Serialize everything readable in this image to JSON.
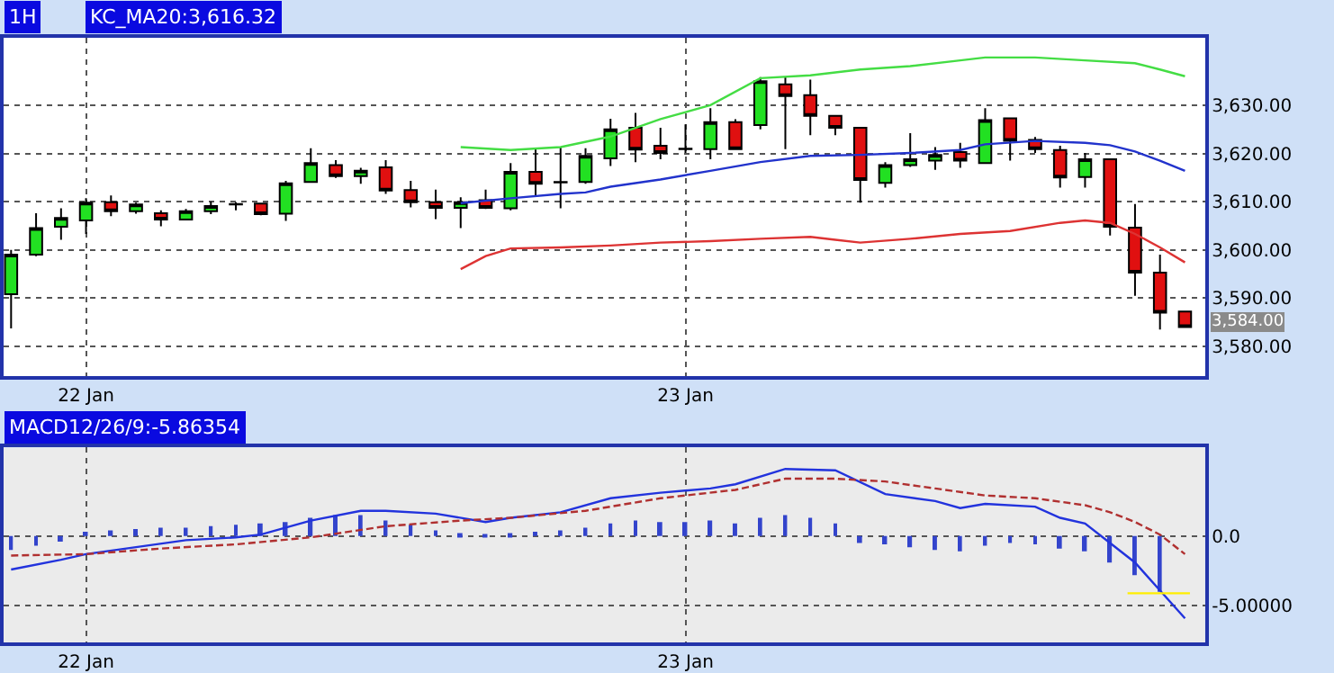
{
  "chart_data": [
    {
      "type": "candlestick",
      "title": "1H",
      "annotations": [
        "KC_MA20:3,616.32",
        "3,584.00"
      ],
      "x": [
        "--01-21T21:00",
        "--01-21T22:00",
        "--01-21T23:00",
        "--01-22T00:00",
        "--01-22T01:00",
        "--01-22T02:00",
        "--01-22T03:00",
        "--01-22T04:00",
        "--01-22T05:00",
        "--01-22T06:00",
        "--01-22T07:00",
        "--01-22T08:00",
        "--01-22T09:00",
        "--01-22T10:00",
        "--01-22T11:00",
        "--01-22T12:00",
        "--01-22T13:00",
        "--01-22T14:00",
        "--01-22T15:00",
        "--01-22T16:00",
        "--01-22T17:00",
        "--01-22T18:00",
        "--01-22T19:00",
        "--01-22T20:00",
        "--01-22T21:00",
        "--01-22T22:00",
        "--01-22T23:00",
        "--01-23T00:00",
        "--01-23T01:00",
        "--01-23T02:00",
        "--01-23T03:00",
        "--01-23T04:00",
        "--01-23T05:00",
        "--01-23T06:00",
        "--01-23T07:00",
        "--01-23T08:00",
        "--01-23T09:00",
        "--01-23T10:00",
        "--01-23T11:00",
        "--01-23T12:00",
        "--01-23T13:00",
        "--01-23T14:00",
        "--01-23T15:00",
        "--01-23T16:00",
        "--01-23T17:00",
        "--01-23T18:00",
        "--01-23T19:00",
        "--01-23T20:00"
      ],
      "ohlc": [
        [
          3590.8,
          3600,
          3583.7,
          3599.0
        ],
        [
          3599.0,
          3607.6,
          3598.7,
          3604.5
        ],
        [
          3604.8,
          3608.6,
          3602.1,
          3606.6
        ],
        [
          3606.1,
          3610.7,
          3603.3,
          3609.8
        ],
        [
          3609.9,
          3611.3,
          3607.0,
          3608.0
        ],
        [
          3608.0,
          3609.8,
          3607.5,
          3609.4
        ],
        [
          3607.6,
          3608.2,
          3604.9,
          3606.3
        ],
        [
          3606.3,
          3608.5,
          3606.1,
          3608.0
        ],
        [
          3608.0,
          3610.0,
          3607.4,
          3609.1
        ],
        [
          3609.4,
          3609.9,
          3608.2,
          3609.5
        ],
        [
          3609.6,
          3609.8,
          3607.2,
          3607.4
        ],
        [
          3607.5,
          3614.3,
          3606.0,
          3613.8
        ],
        [
          3614.1,
          3621.1,
          3614.0,
          3618.0
        ],
        [
          3617.6,
          3618.6,
          3614.9,
          3615.3
        ],
        [
          3615.3,
          3617.0,
          3613.7,
          3616.4
        ],
        [
          3617.1,
          3618.6,
          3611.6,
          3612.3
        ],
        [
          3612.4,
          3614.3,
          3608.8,
          3609.9
        ],
        [
          3609.9,
          3612.5,
          3606.4,
          3608.7
        ],
        [
          3608.7,
          3610.9,
          3604.5,
          3609.9
        ],
        [
          3610.3,
          3612.5,
          3608.5,
          3608.7
        ],
        [
          3608.6,
          3618.0,
          3608.2,
          3616.2
        ],
        [
          3616.2,
          3621.1,
          3611.3,
          3613.7
        ],
        [
          3614.0,
          3621.3,
          3608.6,
          3614.1
        ],
        [
          3614.1,
          3621.1,
          3613.7,
          3619.5
        ],
        [
          3619.0,
          3627.2,
          3617.4,
          3625.0
        ],
        [
          3625.3,
          3628.4,
          3618.2,
          3620.8
        ],
        [
          3621.6,
          3625.3,
          3618.8,
          3620.1
        ],
        [
          3620.9,
          3626.0,
          3620.1,
          3621.0
        ],
        [
          3620.9,
          3629.4,
          3618.8,
          3626.5
        ],
        [
          3626.5,
          3627.1,
          3620.7,
          3620.9
        ],
        [
          3625.9,
          3635.8,
          3625.0,
          3635.0
        ],
        [
          3634.3,
          3635.8,
          3620.9,
          3631.9
        ],
        [
          3632.1,
          3635.3,
          3623.8,
          3627.8
        ],
        [
          3627.8,
          3627.8,
          3623.8,
          3625.3
        ],
        [
          3625.3,
          3625.3,
          3609.8,
          3614.5
        ],
        [
          3613.9,
          3618.2,
          3612.9,
          3617.6
        ],
        [
          3617.6,
          3624.2,
          3617.2,
          3618.8
        ],
        [
          3618.5,
          3621.3,
          3616.6,
          3619.7
        ],
        [
          3620.3,
          3622.2,
          3617.0,
          3618.5
        ],
        [
          3618.0,
          3629.4,
          3618.0,
          3626.9
        ],
        [
          3627.3,
          3627.3,
          3618.5,
          3622.6
        ],
        [
          3622.8,
          3623.4,
          3620.1,
          3620.9
        ],
        [
          3620.7,
          3621.6,
          3612.9,
          3615.0
        ],
        [
          3615.1,
          3620.1,
          3612.9,
          3618.8
        ],
        [
          3618.8,
          3618.8,
          3603.0,
          3604.8
        ],
        [
          3604.6,
          3609.5,
          3590.5,
          3595.3
        ],
        [
          3595.3,
          3599.0,
          3583.5,
          3587.0
        ],
        [
          3587.2,
          3587.2,
          3584.0,
          3584.0
        ]
      ],
      "colors": [
        "#22e022",
        "#22e022",
        "#22e022",
        "#22e022",
        "#e01010",
        "#22e022",
        "#e01010",
        "#22e022",
        "#22e022",
        "#000000",
        "#e01010",
        "#22e022",
        "#22e022",
        "#e01010",
        "#22e022",
        "#e01010",
        "#e01010",
        "#e01010",
        "#22e022",
        "#e01010",
        "#22e022",
        "#e01010",
        "#000000",
        "#22e022",
        "#22e022",
        "#e01010",
        "#e01010",
        "#000000",
        "#22e022",
        "#e01010",
        "#22e022",
        "#e01010",
        "#e01010",
        "#e01010",
        "#e01010",
        "#22e022",
        "#22e022",
        "#22e022",
        "#e01010",
        "#22e022",
        "#e01010",
        "#e01010",
        "#e01010",
        "#22e022",
        "#e01010",
        "#e01010",
        "#e01010",
        "#e01010"
      ],
      "series": [
        {
          "type": "line",
          "color": "#44dd44",
          "x": [
            "--01-22T15:00",
            "--01-22T17:00",
            "--01-22T19:00",
            "--01-22T21:00",
            "--01-22T23:00",
            "--01-23T01:00",
            "--01-23T03:00",
            "--01-23T05:00",
            "--01-23T07:00",
            "--01-23T09:00",
            "--01-23T11:00",
            "--01-23T12:00",
            "--01-23T14:00",
            "--01-23T16:00",
            "--01-23T18:00",
            "--01-23T19:00",
            "--01-23T20:00"
          ],
          "values": [
            3621.3,
            3620.7,
            3621.3,
            3623.5,
            3627.1,
            3630.0,
            3635.6,
            3636.2,
            3637.4,
            3638.1,
            3639.3,
            3639.9,
            3639.9,
            3639.3,
            3638.7,
            3637.4,
            3636.0
          ]
        },
        {
          "type": "line",
          "color": "#2233cc",
          "x": [
            "--01-22T15:00",
            "--01-22T17:00",
            "--01-22T19:00",
            "--01-22T20:00",
            "--01-22T21:00",
            "--01-22T23:00",
            "--01-23T01:00",
            "--01-23T03:00",
            "--01-23T05:00",
            "--01-23T07:00",
            "--01-23T09:00",
            "--01-23T11:00",
            "--01-23T12:00",
            "--01-23T14:00",
            "--01-23T16:00",
            "--01-23T17:00",
            "--01-23T18:00",
            "--01-23T19:00",
            "--01-23T20:00"
          ],
          "values": [
            3609.7,
            3610.7,
            3611.6,
            3611.9,
            3613.1,
            3614.6,
            3616.4,
            3618.2,
            3619.5,
            3619.7,
            3620.1,
            3620.7,
            3621.9,
            3622.6,
            3622.2,
            3621.7,
            3620.4,
            3618.5,
            3616.4
          ]
        },
        {
          "type": "line",
          "color": "#dd3333",
          "x": [
            "--01-22T15:00",
            "--01-22T16:00",
            "--01-22T17:00",
            "--01-22T19:00",
            "--01-22T21:00",
            "--01-22T23:00",
            "--01-23T01:00",
            "--01-23T03:00",
            "--01-23T05:00",
            "--01-23T06:00",
            "--01-23T07:00",
            "--01-23T09:00",
            "--01-23T11:00",
            "--01-23T13:00",
            "--01-23T15:00",
            "--01-23T16:00",
            "--01-23T17:00",
            "--01-23T18:00",
            "--01-23T19:00",
            "--01-23T20:00"
          ],
          "values": [
            3596.0,
            3598.7,
            3600.3,
            3600.5,
            3600.9,
            3601.5,
            3601.8,
            3602.3,
            3602.7,
            3602.1,
            3601.5,
            3602.3,
            3603.3,
            3603.9,
            3605.6,
            3606.1,
            3605.6,
            3603.3,
            3600.5,
            3597.4
          ]
        }
      ],
      "xlim": [
        "--01-21T20:42",
        "--01-23T20:48"
      ],
      "xticks": [
        {
          "value": "--01-22",
          "label": "22 Jan"
        },
        {
          "value": "--01-23",
          "label": "23 Jan"
        }
      ],
      "ylim": [
        3573.8,
        3644
      ],
      "yticks": [
        {
          "value": 3580,
          "label": "3,580.00"
        },
        {
          "value": 3590,
          "label": "3,590.00"
        },
        {
          "value": 3600,
          "label": "3,600.00"
        },
        {
          "value": 3610,
          "label": "3,610.00"
        },
        {
          "value": 3620,
          "label": "3,620.00"
        },
        {
          "value": 3630,
          "label": "3,630.00"
        }
      ],
      "grid": true
    },
    {
      "type": "line",
      "title": "MACD12/26/9:-5.86354",
      "x": [
        "--01-21T21:00",
        "--01-21T23:00",
        "--01-22T00:00",
        "--01-22T02:00",
        "--01-22T04:00",
        "--01-22T06:00",
        "--01-22T07:00",
        "--01-22T09:00",
        "--01-22T11:00",
        "--01-22T12:00",
        "--01-22T14:00",
        "--01-22T16:00",
        "--01-22T17:00",
        "--01-22T19:00",
        "--01-22T21:00",
        "--01-22T23:00",
        "--01-23T01:00",
        "--01-23T02:00",
        "--01-23T04:00",
        "--01-23T06:00",
        "--01-23T08:00",
        "--01-23T10:00",
        "--01-23T11:00",
        "--01-23T12:00",
        "--01-23T14:00",
        "--01-23T15:00",
        "--01-23T16:00",
        "--01-23T17:00",
        "--01-23T18:00",
        "--01-23T19:00",
        "--01-23T20:00"
      ],
      "series": [
        {
          "type": "line",
          "color": "#2233dd",
          "values": [
            -2.4,
            -1.7,
            -1.3,
            -0.8,
            -0.3,
            -0.1,
            0.1,
            1.1,
            1.8,
            1.8,
            1.6,
            1.0,
            1.3,
            1.7,
            2.7,
            3.1,
            3.4,
            3.7,
            4.8,
            4.7,
            3.0,
            2.5,
            2.0,
            2.3,
            2.1,
            1.3,
            0.9,
            -0.5,
            -1.9,
            -3.9,
            -5.9
          ]
        },
        {
          "type": "line",
          "color": "#b03030",
          "line_style": "dashed",
          "x": [
            "--01-21T21:00",
            "--01-22T00:00",
            "--01-22T03:00",
            "--01-22T06:00",
            "--01-22T09:00",
            "--01-22T12:00",
            "--01-22T15:00",
            "--01-22T17:00",
            "--01-22T20:00",
            "--01-22T23:00",
            "--01-23T02:00",
            "--01-23T04:00",
            "--01-23T06:00",
            "--01-23T08:00",
            "--01-23T10:00",
            "--01-23T12:00",
            "--01-23T14:00",
            "--01-23T16:00",
            "--01-23T17:00",
            "--01-23T18:00",
            "--01-23T19:00",
            "--01-23T20:00"
          ],
          "values": [
            -1.4,
            -1.3,
            -0.9,
            -0.6,
            -0.1,
            0.7,
            1.1,
            1.3,
            1.8,
            2.7,
            3.3,
            4.1,
            4.1,
            3.9,
            3.4,
            2.9,
            2.7,
            2.2,
            1.7,
            1.0,
            0.1,
            -1.3
          ]
        },
        {
          "type": "bar",
          "color": "#3344cc",
          "x": [
            "--01-21T21:00",
            "--01-21T22:00",
            "--01-21T23:00",
            "--01-22T00:00",
            "--01-22T01:00",
            "--01-22T02:00",
            "--01-22T03:00",
            "--01-22T04:00",
            "--01-22T05:00",
            "--01-22T06:00",
            "--01-22T07:00",
            "--01-22T08:00",
            "--01-22T09:00",
            "--01-22T10:00",
            "--01-22T11:00",
            "--01-22T12:00",
            "--01-22T13:00",
            "--01-22T14:00",
            "--01-22T15:00",
            "--01-22T16:00",
            "--01-22T17:00",
            "--01-22T18:00",
            "--01-22T19:00",
            "--01-22T20:00",
            "--01-22T21:00",
            "--01-22T22:00",
            "--01-22T23:00",
            "--01-23T00:00",
            "--01-23T01:00",
            "--01-23T02:00",
            "--01-23T03:00",
            "--01-23T04:00",
            "--01-23T05:00",
            "--01-23T06:00",
            "--01-23T07:00",
            "--01-23T08:00",
            "--01-23T09:00",
            "--01-23T10:00",
            "--01-23T11:00",
            "--01-23T12:00",
            "--01-23T13:00",
            "--01-23T14:00",
            "--01-23T15:00",
            "--01-23T16:00",
            "--01-23T17:00",
            "--01-23T18:00",
            "--01-23T19:00"
          ],
          "values": [
            -1.0,
            -0.7,
            -0.4,
            0.3,
            0.4,
            0.5,
            0.6,
            0.6,
            0.7,
            0.8,
            0.9,
            1.0,
            1.3,
            1.5,
            1.5,
            1.1,
            0.8,
            0.4,
            0.2,
            0.1,
            0.2,
            0.3,
            0.4,
            0.6,
            0.9,
            1.1,
            1.0,
            1.0,
            1.1,
            0.9,
            1.3,
            1.5,
            1.3,
            0.9,
            -0.5,
            -0.6,
            -0.8,
            -1.0,
            -1.1,
            -0.7,
            -0.5,
            -0.6,
            -0.9,
            -1.1,
            -1.9,
            -2.8,
            -4.0
          ]
        },
        {
          "type": "line",
          "color": "#ffee00",
          "x": [
            "--01-23T17:42",
            "--01-23T20:12"
          ],
          "values": [
            -4.1,
            -4.1
          ]
        }
      ],
      "xlim": [
        "--01-21T20:42",
        "--01-23T20:48"
      ],
      "xticks": [
        {
          "value": "--01-22",
          "label": "22 Jan"
        },
        {
          "value": "--01-23",
          "label": "23 Jan"
        }
      ],
      "ylim": [
        -7.64,
        6.33
      ],
      "yticks": [
        {
          "value": 0,
          "label": "0.0"
        },
        {
          "value": -5,
          "label": "-5.00000"
        }
      ],
      "grid": true
    }
  ]
}
